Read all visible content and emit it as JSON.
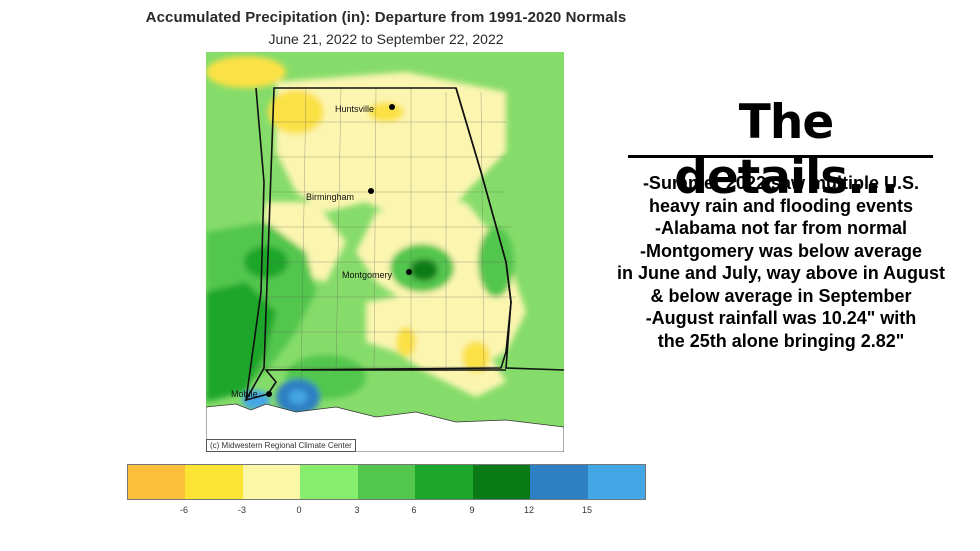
{
  "map": {
    "title": "Accumulated Precipitation (in): Departure from 1991-2020 Normals",
    "subtitle": "June 21, 2022 to September 22, 2022",
    "cities": [
      "Huntsville",
      "Birmingham",
      "Montgomery",
      "Mobile"
    ],
    "credit": "(c) Midwestern Regional Climate Center"
  },
  "legend": {
    "colors": [
      "#fbbf3b",
      "#fbe434",
      "#fbf7a6",
      "#86ee6c",
      "#52c64d",
      "#1ca62a",
      "#0a7a16",
      "#2f7fc3",
      "#44a7e5"
    ],
    "ticks": [
      "-6",
      "-3",
      "0",
      "3",
      "6",
      "9",
      "12",
      "15"
    ]
  },
  "details": {
    "heading": "The details...",
    "lines": [
      "-Summer 2022 saw multiple U.S.",
      "heavy rain and flooding events",
      "-Alabama not far from normal",
      "-Montgomery was below average",
      "in June and July, way above in August",
      "& below average in September",
      "-August rainfall was 10.24\" with",
      "the 25th alone bringing 2.82\""
    ]
  }
}
